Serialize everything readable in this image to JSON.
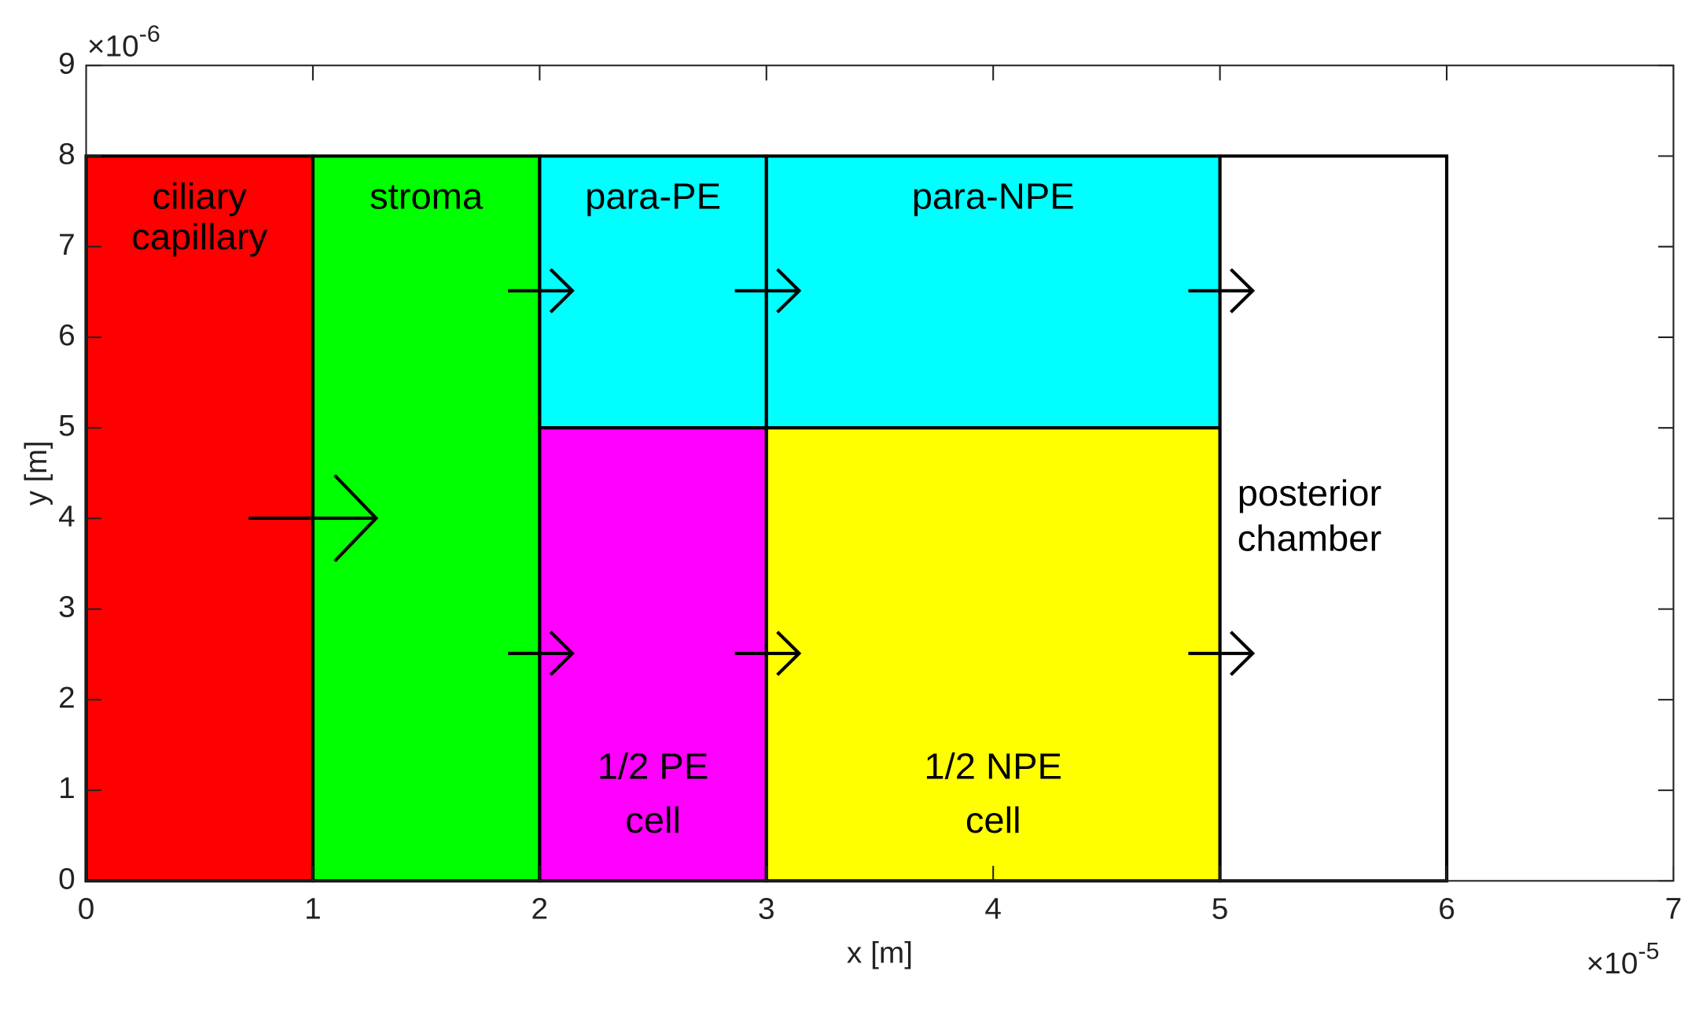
{
  "chart_data": {
    "type": "regions",
    "xlabel": "x [m]",
    "ylabel": "y [m]",
    "x_multiplier": "×10",
    "x_exponent": "-5",
    "y_multiplier": "×10",
    "y_exponent": "-6",
    "xlim": [
      0,
      7
    ],
    "ylim": [
      0,
      9
    ],
    "xticks": [
      0,
      1,
      2,
      3,
      4,
      5,
      6,
      7
    ],
    "yticks": [
      0,
      1,
      2,
      3,
      4,
      5,
      6,
      7,
      8,
      9
    ],
    "regions": [
      {
        "label": [
          "ciliary",
          "capillary"
        ],
        "x": [
          0,
          1
        ],
        "y": [
          0,
          8
        ],
        "color": "#ff0000"
      },
      {
        "label": [
          "stroma"
        ],
        "x": [
          1,
          2
        ],
        "y": [
          0,
          8
        ],
        "color": "#00ff00"
      },
      {
        "label": [
          "para-PE"
        ],
        "x": [
          2,
          3
        ],
        "y": [
          5,
          8
        ],
        "color": "#00ffff"
      },
      {
        "label": [
          "para-NPE"
        ],
        "x": [
          3,
          5
        ],
        "y": [
          5,
          8
        ],
        "color": "#00ffff"
      },
      {
        "label": [
          "1/2 PE",
          "cell"
        ],
        "x": [
          2,
          3
        ],
        "y": [
          0,
          5
        ],
        "color": "#ff00ff"
      },
      {
        "label": [
          "1/2 NPE",
          "cell"
        ],
        "x": [
          3,
          5
        ],
        "y": [
          0,
          5
        ],
        "color": "#ffff00"
      },
      {
        "label": [
          "posterior",
          "chamber"
        ],
        "x": [
          5,
          6
        ],
        "y": [
          0,
          8
        ],
        "color": "#ffffff"
      }
    ]
  }
}
